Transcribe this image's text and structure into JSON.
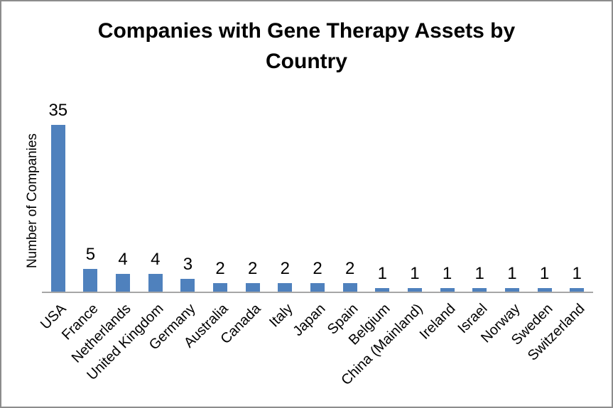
{
  "chart_data": {
    "type": "bar",
    "title": "Companies with Gene Therapy Assets by Country",
    "ylabel": "Number of Companies",
    "xlabel": "",
    "categories": [
      "USA",
      "France",
      "Netherlands",
      "United Kingdom",
      "Germany",
      "Australia",
      "Canada",
      "Italy",
      "Japan",
      "Spain",
      "Belgium",
      "China (Mainland)",
      "Ireland",
      "Israel",
      "Norway",
      "Sweden",
      "Switzerland"
    ],
    "values": [
      35,
      5,
      4,
      4,
      3,
      2,
      2,
      2,
      2,
      2,
      1,
      1,
      1,
      1,
      1,
      1,
      1
    ],
    "ylim": [
      0,
      35
    ],
    "data_labels": true,
    "gridlines": false,
    "legend": "none",
    "category_label_rotation": -45,
    "bar_color": "#4F81BD",
    "axis_line_color": "#A6A6A6",
    "text_color": "#000000"
  }
}
